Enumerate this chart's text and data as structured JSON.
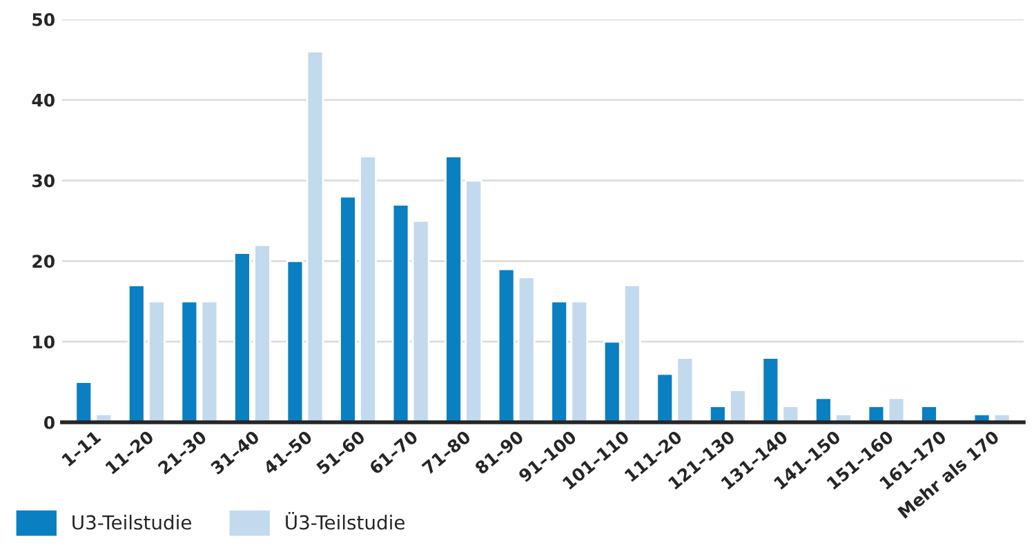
{
  "chart_data": {
    "type": "bar",
    "categories": [
      "1–11",
      "11–20",
      "21–30",
      "31–40",
      "41–50",
      "51–60",
      "61–70",
      "71–80",
      "81–90",
      "91–100",
      "101–110",
      "111–20",
      "121–130",
      "131–140",
      "141–150",
      "151–160",
      "161–170",
      "Mehr als 170"
    ],
    "series": [
      {
        "name": "U3-Teilstudie",
        "color": "#0a7fc2",
        "values": [
          5,
          17,
          15,
          21,
          20,
          28,
          27,
          33,
          19,
          15,
          10,
          6,
          2,
          8,
          3,
          2,
          2,
          1
        ]
      },
      {
        "name": "Ü3-Teilstudie",
        "color": "#c3d9ee",
        "values": [
          1,
          15,
          15,
          22,
          46,
          33,
          25,
          30,
          18,
          15,
          17,
          8,
          4,
          2,
          1,
          3,
          null,
          1
        ]
      }
    ],
    "ylim": [
      0,
      50
    ],
    "yticks": [
      0,
      10,
      20,
      30,
      40,
      50
    ],
    "grid": "y",
    "legend": "bottom left"
  }
}
